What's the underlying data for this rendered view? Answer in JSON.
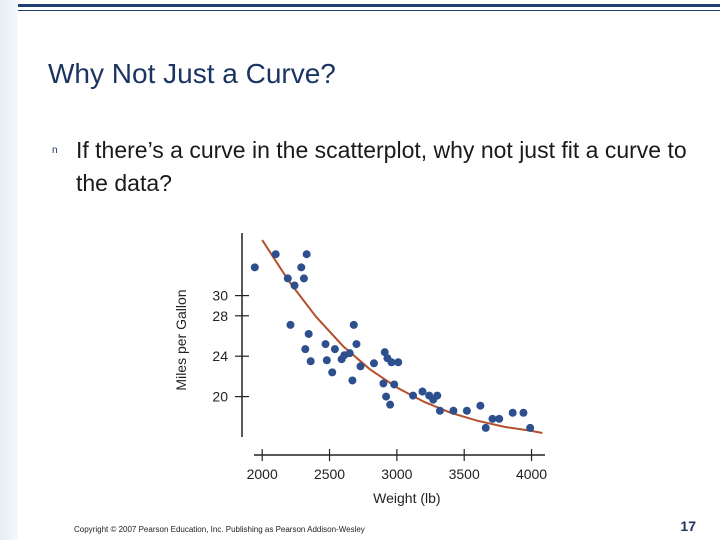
{
  "slide": {
    "title": "Why Not Just a Curve?",
    "bullet_marker": "n",
    "bullet": "If there’s a curve in the scatterplot, why not just fit a curve to the data?",
    "footer": "Copyright © 2007 Pearson Education, Inc. Publishing as Pearson Addison-Wesley",
    "page_number": "17"
  },
  "colors": {
    "accent": "#1f3f74",
    "points": "#2d4f8e",
    "curve": "#b5502c"
  },
  "chart_data": {
    "type": "scatter",
    "title": "",
    "xlabel": "Weight (lb)",
    "ylabel": "Miles per Gallon",
    "xlim": [
      1850,
      4100
    ],
    "ylim": [
      16,
      36
    ],
    "x_ticks": [
      2000,
      2500,
      3000,
      3500,
      4000
    ],
    "x_tick_labels": [
      "2000",
      "2500",
      "3000",
      "3500",
      "4000"
    ],
    "y_ticks": [
      20,
      24,
      28,
      30
    ],
    "y_tick_labels": [
      "20",
      "24",
      "28",
      "30"
    ],
    "grid": false,
    "legend": false,
    "points": [
      {
        "x": 1945,
        "y": 32.8
      },
      {
        "x": 2100,
        "y": 34.1
      },
      {
        "x": 2190,
        "y": 31.7
      },
      {
        "x": 2210,
        "y": 27.1
      },
      {
        "x": 2240,
        "y": 31.0
      },
      {
        "x": 2290,
        "y": 32.8
      },
      {
        "x": 2310,
        "y": 31.7
      },
      {
        "x": 2330,
        "y": 34.1
      },
      {
        "x": 2320,
        "y": 24.7
      },
      {
        "x": 2345,
        "y": 26.2
      },
      {
        "x": 2360,
        "y": 23.5
      },
      {
        "x": 2470,
        "y": 25.2
      },
      {
        "x": 2480,
        "y": 23.6
      },
      {
        "x": 2520,
        "y": 22.4
      },
      {
        "x": 2540,
        "y": 24.7
      },
      {
        "x": 2590,
        "y": 23.7
      },
      {
        "x": 2610,
        "y": 24.1
      },
      {
        "x": 2650,
        "y": 24.3
      },
      {
        "x": 2670,
        "y": 21.6
      },
      {
        "x": 2680,
        "y": 27.1
      },
      {
        "x": 2700,
        "y": 25.2
      },
      {
        "x": 2730,
        "y": 23.0
      },
      {
        "x": 2830,
        "y": 23.3
      },
      {
        "x": 2900,
        "y": 21.3
      },
      {
        "x": 2910,
        "y": 24.4
      },
      {
        "x": 2930,
        "y": 23.8
      },
      {
        "x": 2920,
        "y": 20.0
      },
      {
        "x": 2950,
        "y": 19.2
      },
      {
        "x": 2960,
        "y": 23.4
      },
      {
        "x": 2980,
        "y": 21.2
      },
      {
        "x": 3010,
        "y": 23.4
      },
      {
        "x": 3120,
        "y": 20.1
      },
      {
        "x": 3190,
        "y": 20.5
      },
      {
        "x": 3240,
        "y": 20.1
      },
      {
        "x": 3270,
        "y": 19.7
      },
      {
        "x": 3320,
        "y": 18.6
      },
      {
        "x": 3300,
        "y": 20.1
      },
      {
        "x": 3420,
        "y": 18.6
      },
      {
        "x": 3520,
        "y": 18.6
      },
      {
        "x": 3620,
        "y": 19.1
      },
      {
        "x": 3660,
        "y": 16.9
      },
      {
        "x": 3710,
        "y": 17.8
      },
      {
        "x": 3760,
        "y": 17.8
      },
      {
        "x": 3860,
        "y": 18.4
      },
      {
        "x": 3940,
        "y": 18.4
      },
      {
        "x": 3990,
        "y": 16.9
      }
    ],
    "curve": {
      "name": "",
      "x": [
        2000,
        2200,
        2400,
        2600,
        2800,
        3000,
        3200,
        3400,
        3600,
        3800,
        4000,
        4080
      ],
      "y": [
        35.5,
        31.4,
        27.9,
        25.0,
        22.7,
        20.9,
        19.5,
        18.4,
        17.6,
        17.0,
        16.6,
        16.4
      ]
    }
  }
}
